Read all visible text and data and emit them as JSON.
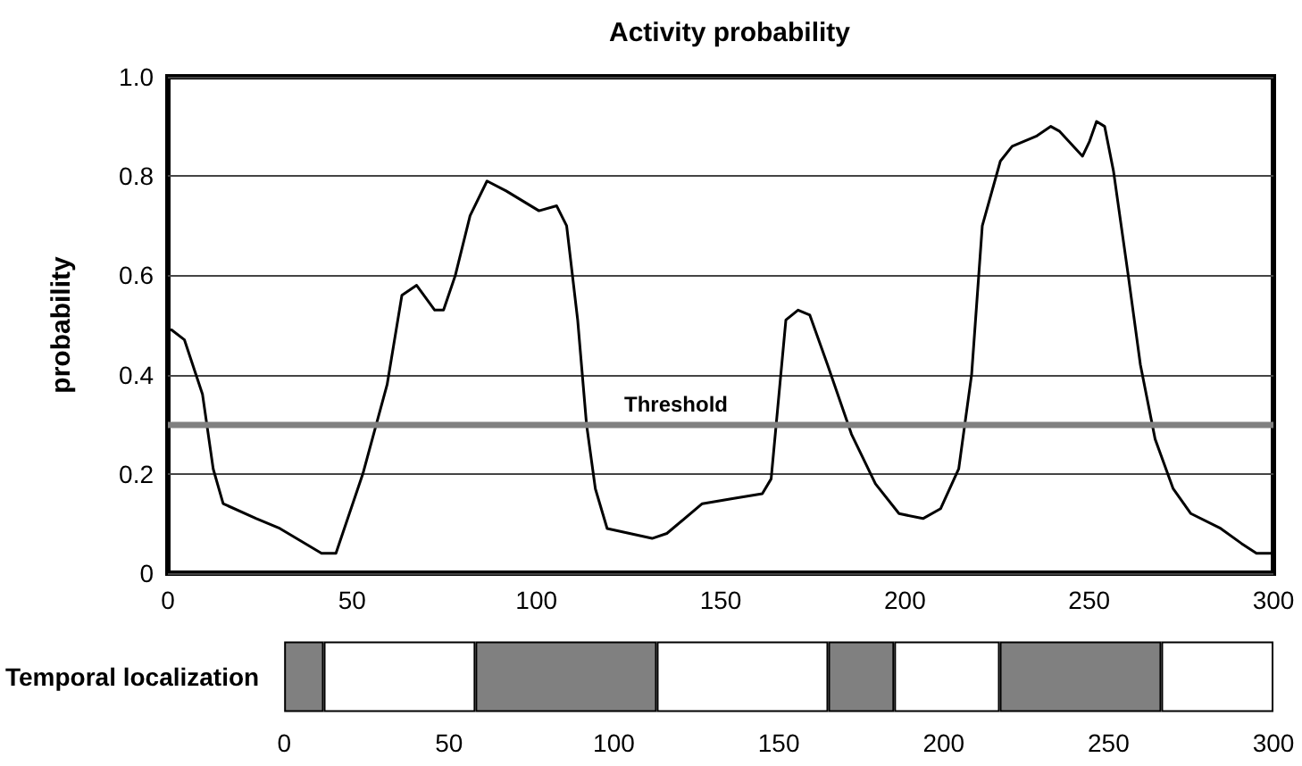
{
  "chart_data": [
    {
      "type": "line",
      "title": "Activity probability",
      "ylabel": "probability",
      "x": [
        0,
        1,
        4.5,
        9.4,
        12.3,
        15,
        24,
        30.4,
        41.7,
        45.6,
        52.9,
        59.5,
        63.5,
        67.5,
        72.4,
        74.8,
        78,
        82,
        86.6,
        91.8,
        100.7,
        105.5,
        108.2,
        111.2,
        113.6,
        116,
        119.2,
        131.4,
        135.4,
        145,
        153.2,
        161.3,
        163.7,
        167.7,
        171,
        174.2,
        179,
        185.5,
        192,
        198.4,
        204.9,
        209.7,
        214.6,
        218.1,
        221,
        225.9,
        229.1,
        235.6,
        239.6,
        242,
        248.2,
        250.1,
        252,
        254.2,
        256.6,
        260.6,
        263.9,
        267.9,
        272.8,
        277.6,
        285.7,
        291.3,
        295.4,
        300
      ],
      "series": [
        {
          "color": "#000000",
          "values": [
            0.49,
            0.49,
            0.47,
            0.36,
            0.21,
            0.14,
            0.11,
            0.09,
            0.04,
            0.04,
            0.2,
            0.38,
            0.56,
            0.58,
            0.53,
            0.53,
            0.6,
            0.72,
            0.79,
            0.77,
            0.73,
            0.74,
            0.7,
            0.51,
            0.3,
            0.17,
            0.09,
            0.07,
            0.08,
            0.14,
            0.15,
            0.16,
            0.19,
            0.51,
            0.53,
            0.52,
            0.42,
            0.28,
            0.18,
            0.12,
            0.11,
            0.13,
            0.21,
            0.4,
            0.7,
            0.83,
            0.86,
            0.88,
            0.9,
            0.89,
            0.84,
            0.87,
            0.91,
            0.9,
            0.81,
            0.6,
            0.42,
            0.27,
            0.17,
            0.12,
            0.09,
            0.06,
            0.04,
            0.04
          ]
        }
      ],
      "xlim": [
        0,
        300
      ],
      "xticks": [
        0,
        50,
        100,
        150,
        200,
        250,
        300
      ],
      "ylim": [
        0,
        1
      ],
      "yticks": [
        {
          "value": 0,
          "label": "0"
        },
        0.2,
        0.4,
        0.6,
        0.8,
        {
          "value": 1,
          "label": "1.0"
        }
      ],
      "grid": "y",
      "marker": "none",
      "line_style": "solid",
      "ref_lines": [
        {
          "axis": "y",
          "value": 0.3,
          "label": "Threshold",
          "color": "#808080"
        }
      ]
    },
    {
      "type": "bar",
      "orientation": "horizontal",
      "stacked": true,
      "ylabel": "Temporal localization",
      "categories": [
        null
      ],
      "series": [
        {
          "color": "#808080",
          "values": [
            12
          ]
        },
        {
          "color": "#ffffff",
          "values": [
            46
          ]
        },
        {
          "color": "#808080",
          "values": [
            55
          ]
        },
        {
          "color": "#ffffff",
          "values": [
            52
          ]
        },
        {
          "color": "#808080",
          "values": [
            20
          ]
        },
        {
          "color": "#ffffff",
          "values": [
            32
          ]
        },
        {
          "color": "#808080",
          "values": [
            49
          ]
        },
        {
          "color": "#ffffff",
          "values": [
            34
          ]
        }
      ],
      "xlim": [
        0,
        300
      ],
      "xticks": [
        0,
        50,
        100,
        150,
        200,
        250,
        300
      ],
      "tick_labels": "x"
    }
  ]
}
